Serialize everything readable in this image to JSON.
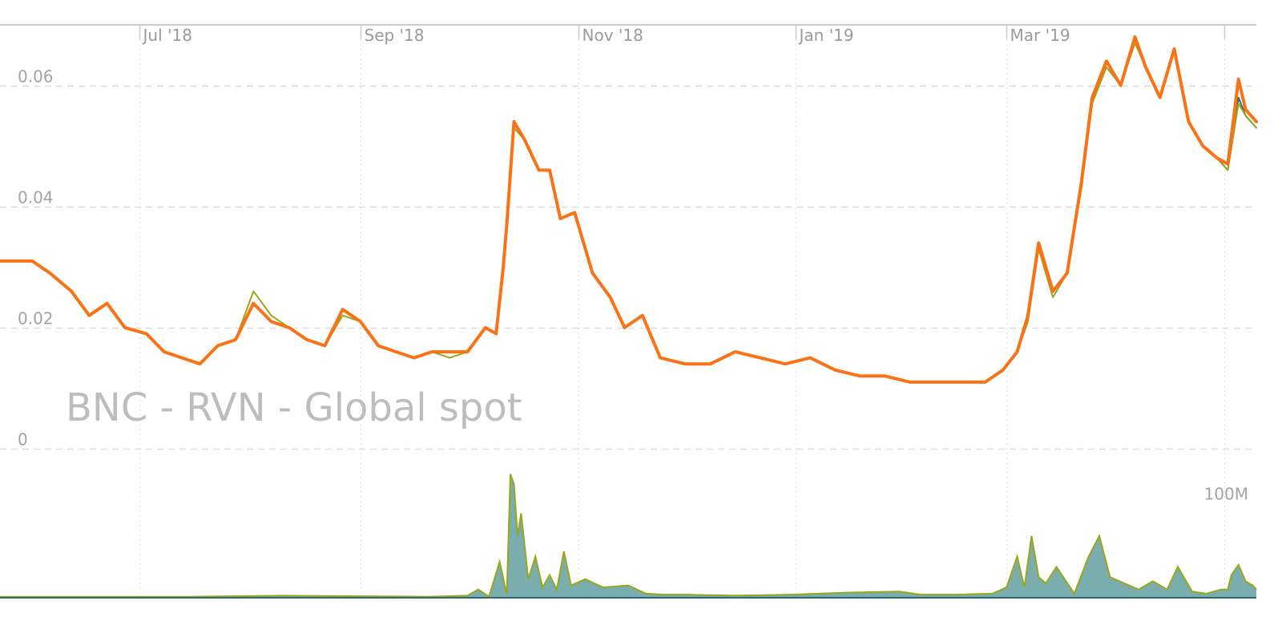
{
  "colors": {
    "index_line": "#f97316",
    "secondary_line": "#9aa61c",
    "tertiary_line": "#2d6a7a",
    "volume_fill": "#7aaeae",
    "volume_stroke": "#9aa61c",
    "grid": "#dddddd",
    "axis": "#cccccc"
  },
  "chart_data": {
    "type": "line",
    "watermark": "BNC - RVN - Global spot",
    "x_axis": {
      "range": [
        "2018-05-23",
        "2019-05-10"
      ],
      "ticks": [
        {
          "date": "2018-07-01",
          "label": "Jul '18"
        },
        {
          "date": "2018-09-01",
          "label": "Sep '18"
        },
        {
          "date": "2018-11-01",
          "label": "Nov '18"
        },
        {
          "date": "2019-01-01",
          "label": "Jan '19"
        },
        {
          "date": "2019-03-01",
          "label": "Mar '19"
        },
        {
          "date": "2019-05-01",
          "label": ""
        }
      ]
    },
    "y_axis": {
      "range": [
        0,
        0.07
      ],
      "ticks": [
        {
          "value": 0,
          "label": "0"
        },
        {
          "value": 0.02,
          "label": "0.02"
        },
        {
          "value": 0.04,
          "label": "0.04"
        },
        {
          "value": 0.06,
          "label": "0.06"
        }
      ],
      "grid": true
    },
    "volume_axis": {
      "range": [
        0,
        140000000
      ],
      "ticks": [
        {
          "value": 100000000,
          "label": "100M"
        }
      ]
    },
    "price": {
      "x": [
        "2018-05-23",
        "2018-06-01",
        "2018-06-06",
        "2018-06-12",
        "2018-06-17",
        "2018-06-22",
        "2018-06-27",
        "2018-07-03",
        "2018-07-08",
        "2018-07-13",
        "2018-07-18",
        "2018-07-23",
        "2018-07-28",
        "2018-08-02",
        "2018-08-07",
        "2018-08-12",
        "2018-08-17",
        "2018-08-22",
        "2018-08-27",
        "2018-09-01",
        "2018-09-06",
        "2018-09-11",
        "2018-09-16",
        "2018-09-21",
        "2018-09-26",
        "2018-10-01",
        "2018-10-06",
        "2018-10-09",
        "2018-10-11",
        "2018-10-12",
        "2018-10-14",
        "2018-10-17",
        "2018-10-21",
        "2018-10-24",
        "2018-10-27",
        "2018-10-31",
        "2018-11-05",
        "2018-11-10",
        "2018-11-14",
        "2018-11-19",
        "2018-11-24",
        "2018-12-01",
        "2018-12-08",
        "2018-12-15",
        "2018-12-22",
        "2018-12-29",
        "2019-01-05",
        "2019-01-12",
        "2019-01-19",
        "2019-01-26",
        "2019-02-02",
        "2019-02-09",
        "2019-02-16",
        "2019-02-23",
        "2019-02-28",
        "2019-03-04",
        "2019-03-07",
        "2019-03-10",
        "2019-03-14",
        "2019-03-18",
        "2019-03-22",
        "2019-03-25",
        "2019-03-29",
        "2019-04-02",
        "2019-04-06",
        "2019-04-09",
        "2019-04-13",
        "2019-04-17",
        "2019-04-21",
        "2019-04-25",
        "2019-04-29",
        "2019-05-02",
        "2019-05-05",
        "2019-05-07",
        "2019-05-10"
      ],
      "series": [
        {
          "values": [
            0.031,
            0.031,
            0.029,
            0.026,
            0.022,
            0.024,
            0.02,
            0.019,
            0.016,
            0.015,
            0.014,
            0.017,
            0.018,
            0.024,
            0.021,
            0.02,
            0.018,
            0.017,
            0.023,
            0.021,
            0.017,
            0.016,
            0.015,
            0.016,
            0.016,
            0.016,
            0.02,
            0.019,
            0.03,
            0.037,
            0.053,
            0.051,
            0.046,
            0.046,
            0.038,
            0.039,
            0.029,
            0.025,
            0.02,
            0.022,
            0.015,
            0.014,
            0.014,
            0.016,
            0.015,
            0.014,
            0.015,
            0.013,
            0.012,
            0.012,
            0.011,
            0.011,
            0.011,
            0.011,
            0.013,
            0.016,
            0.022,
            0.034,
            0.026,
            0.029,
            0.044,
            0.058,
            0.064,
            0.06,
            0.068,
            0.063,
            0.058,
            0.066,
            0.054,
            0.05,
            0.048,
            0.046,
            0.058,
            0.055,
            0.053
          ]
        },
        {
          "values": [
            0.031,
            0.031,
            0.029,
            0.026,
            0.022,
            0.024,
            0.02,
            0.019,
            0.016,
            0.015,
            0.014,
            0.017,
            0.018,
            0.026,
            0.022,
            0.02,
            0.018,
            0.017,
            0.022,
            0.021,
            0.017,
            0.016,
            0.015,
            0.016,
            0.015,
            0.016,
            0.02,
            0.019,
            0.03,
            0.036,
            0.053,
            0.051,
            0.046,
            0.046,
            0.038,
            0.039,
            0.029,
            0.025,
            0.02,
            0.022,
            0.015,
            0.014,
            0.014,
            0.016,
            0.015,
            0.014,
            0.015,
            0.013,
            0.012,
            0.012,
            0.011,
            0.011,
            0.011,
            0.011,
            0.013,
            0.016,
            0.021,
            0.033,
            0.025,
            0.029,
            0.043,
            0.057,
            0.063,
            0.06,
            0.067,
            0.063,
            0.058,
            0.066,
            0.054,
            0.05,
            0.048,
            0.046,
            0.057,
            0.055,
            0.053
          ]
        },
        {
          "values": [
            0.031,
            0.031,
            0.029,
            0.026,
            0.022,
            0.024,
            0.02,
            0.019,
            0.016,
            0.015,
            0.014,
            0.017,
            0.018,
            0.024,
            0.021,
            0.02,
            0.018,
            0.017,
            0.023,
            0.021,
            0.017,
            0.016,
            0.015,
            0.016,
            0.016,
            0.016,
            0.02,
            0.019,
            0.03,
            0.037,
            0.054,
            0.051,
            0.046,
            0.046,
            0.038,
            0.039,
            0.029,
            0.025,
            0.02,
            0.022,
            0.015,
            0.014,
            0.014,
            0.016,
            0.015,
            0.014,
            0.015,
            0.013,
            0.012,
            0.012,
            0.011,
            0.011,
            0.011,
            0.011,
            0.013,
            0.016,
            0.022,
            0.034,
            0.026,
            0.029,
            0.044,
            0.058,
            0.064,
            0.06,
            0.068,
            0.063,
            0.058,
            0.066,
            0.054,
            0.05,
            0.048,
            0.047,
            0.061,
            0.056,
            0.054
          ]
        }
      ]
    },
    "volume": {
      "x": [
        "2018-05-23",
        "2018-07-15",
        "2018-08-10",
        "2018-09-20",
        "2018-10-01",
        "2018-10-04",
        "2018-10-07",
        "2018-10-10",
        "2018-10-12",
        "2018-10-13",
        "2018-10-14",
        "2018-10-15",
        "2018-10-16",
        "2018-10-18",
        "2018-10-20",
        "2018-10-22",
        "2018-10-24",
        "2018-10-26",
        "2018-10-28",
        "2018-10-30",
        "2018-11-03",
        "2018-11-08",
        "2018-11-15",
        "2018-11-20",
        "2018-11-25",
        "2018-12-01",
        "2018-12-15",
        "2018-12-31",
        "2019-01-15",
        "2019-01-30",
        "2019-02-05",
        "2019-02-15",
        "2019-02-25",
        "2019-03-01",
        "2019-03-04",
        "2019-03-06",
        "2019-03-08",
        "2019-03-10",
        "2019-03-12",
        "2019-03-15",
        "2019-03-20",
        "2019-03-24",
        "2019-03-27",
        "2019-03-30",
        "2019-04-03",
        "2019-04-07",
        "2019-04-11",
        "2019-04-15",
        "2019-04-18",
        "2019-04-22",
        "2019-04-26",
        "2019-04-30",
        "2019-05-02",
        "2019-05-03",
        "2019-05-05",
        "2019-05-07",
        "2019-05-09",
        "2019-05-10"
      ],
      "values": [
        1000000,
        1000000,
        2000000,
        1000000,
        2000000,
        8000000,
        1000000,
        35000000,
        3000000,
        120000000,
        110000000,
        60000000,
        82000000,
        18000000,
        40000000,
        10000000,
        22000000,
        8000000,
        45000000,
        12000000,
        18000000,
        10000000,
        12000000,
        4000000,
        3000000,
        3000000,
        2000000,
        3000000,
        5000000,
        6000000,
        3000000,
        3000000,
        4000000,
        10000000,
        40000000,
        10000000,
        60000000,
        20000000,
        14000000,
        30000000,
        4000000,
        40000000,
        60000000,
        20000000,
        14000000,
        8000000,
        16000000,
        8000000,
        30000000,
        6000000,
        4000000,
        8000000,
        8000000,
        22000000,
        32000000,
        16000000,
        12000000,
        8000000
      ]
    }
  }
}
